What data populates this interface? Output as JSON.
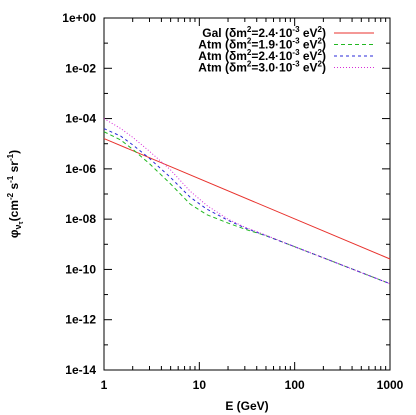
{
  "chart_data": {
    "type": "line",
    "xlabel": "E (GeV)",
    "ylabel": {
      "base": "φ",
      "sub": "ν",
      "subsub": "τ",
      "unit_open": "(cm",
      "exp1": "-2",
      "mid1": " s",
      "exp2": "-1",
      "mid2": " sr",
      "exp3": "-1",
      "unit_close": ")"
    },
    "xscale": "log",
    "yscale": "log",
    "xlim": [
      1,
      1000
    ],
    "ylim": [
      1e-14,
      1
    ],
    "xticks": [
      {
        "value": 1,
        "label": "1"
      },
      {
        "value": 10,
        "label": "10"
      },
      {
        "value": 100,
        "label": "100"
      },
      {
        "value": 1000,
        "label": "1000"
      }
    ],
    "yticks": [
      {
        "value": 1,
        "label": "1e+00"
      },
      {
        "value": 0.01,
        "label": "1e-02"
      },
      {
        "value": 0.0001,
        "label": "1e-04"
      },
      {
        "value": 1e-06,
        "label": "1e-06"
      },
      {
        "value": 1e-08,
        "label": "1e-08"
      },
      {
        "value": 1e-10,
        "label": "1e-10"
      },
      {
        "value": 1e-12,
        "label": "1e-12"
      },
      {
        "value": 1e-14,
        "label": "1e-14"
      }
    ],
    "grid": false,
    "legend_position": "top-right",
    "series": [
      {
        "name": "Gal",
        "legend": {
          "pre": "Gal (δm",
          "sup": "2",
          "mid": "=2.4·10",
          "exp": "-3",
          "unit": " eV",
          "sup2": "2",
          "post": ")"
        },
        "color": "#e8322d",
        "dash": "",
        "x": [
          1,
          1000
        ],
        "y": [
          1.6e-05,
          2.6e-10
        ]
      },
      {
        "name": "Atm",
        "legend": {
          "pre": "Atm (δm",
          "sup": "2",
          "mid": "=1.9·10",
          "exp": "-3",
          "unit": " eV",
          "sup2": "2",
          "post": ")"
        },
        "color": "#22b822",
        "dash": "4,3",
        "x": [
          1,
          1.5,
          2,
          3,
          5,
          8,
          12,
          20,
          30,
          50,
          100,
          200,
          500,
          1000
        ],
        "y": [
          3e-05,
          1.4e-05,
          6e-06,
          1.6e-06,
          2.5e-07,
          4e-08,
          1.5e-08,
          7e-09,
          4e-09,
          2.2e-09,
          8e-10,
          2.9e-10,
          7.5e-11,
          2.7e-11
        ]
      },
      {
        "name": "Atm",
        "legend": {
          "pre": "Atm (δm",
          "sup": "2",
          "mid": "=2.4·10",
          "exp": "-3",
          "unit": " eV",
          "sup2": "2",
          "post": ")"
        },
        "color": "#2a2ad8",
        "dash": "3,3",
        "x": [
          1,
          1.5,
          2,
          3,
          5,
          8,
          12,
          20,
          30,
          50,
          100,
          200,
          500,
          1000
        ],
        "y": [
          4e-05,
          2e-05,
          9e-06,
          2.6e-06,
          4.5e-07,
          7.5e-08,
          2.5e-08,
          9e-09,
          4.5e-09,
          2.2e-09,
          8e-10,
          2.9e-10,
          7.5e-11,
          2.7e-11
        ]
      },
      {
        "name": "Atm",
        "legend": {
          "pre": "Atm (δm",
          "sup": "2",
          "mid": "=3.0·10",
          "exp": "-3",
          "unit": " eV",
          "sup2": "2",
          "post": ")"
        },
        "color": "#d82ad8",
        "dash": "1,2",
        "x": [
          1,
          1.5,
          2,
          3,
          5,
          8,
          12,
          20,
          30,
          50,
          100,
          200,
          500,
          1000
        ],
        "y": [
          0.0001,
          4e-05,
          1.8e-05,
          5e-06,
          9e-07,
          1.3e-07,
          3.5e-08,
          1e-08,
          4.8e-09,
          2.3e-09,
          8e-10,
          2.9e-10,
          7.5e-11,
          2.7e-11
        ]
      }
    ]
  }
}
